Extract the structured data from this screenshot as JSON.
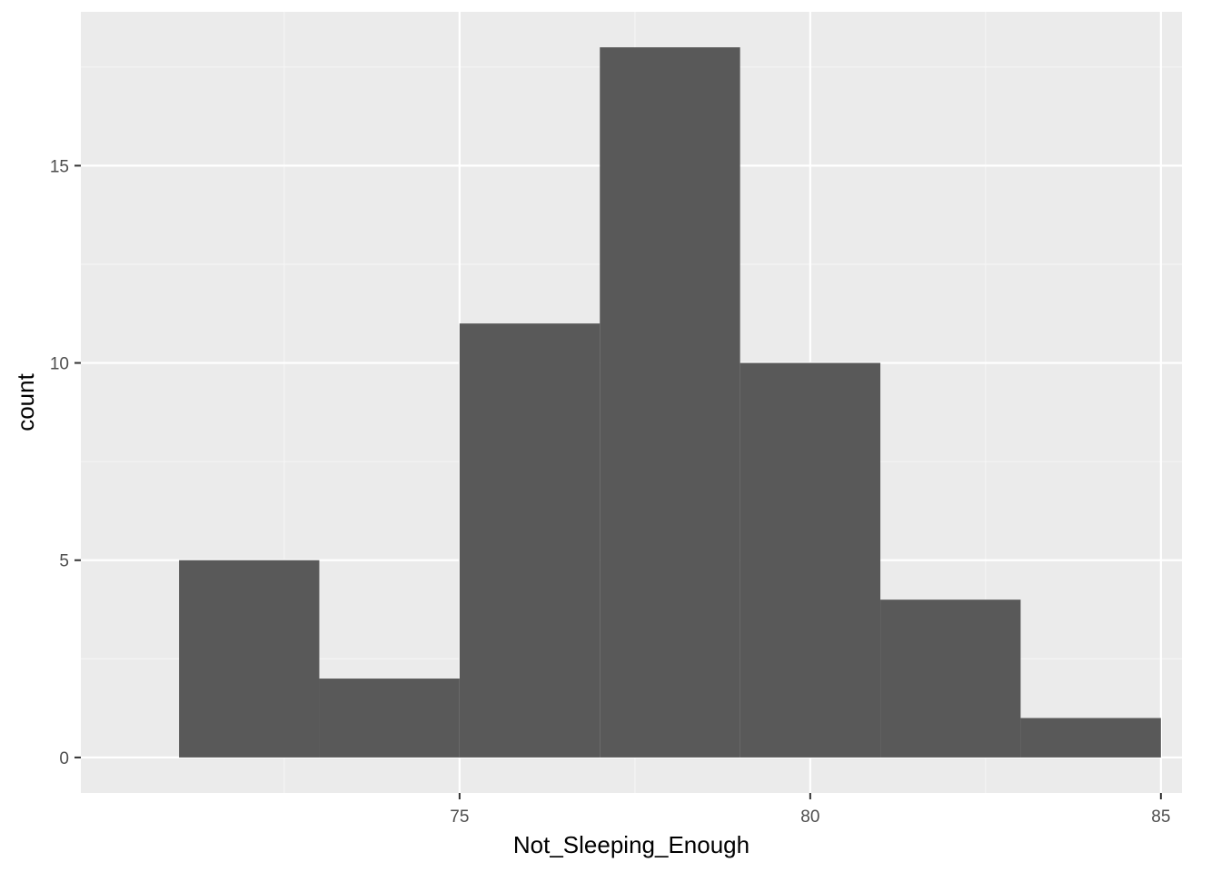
{
  "chart_data": {
    "type": "bar",
    "subtype": "histogram",
    "title": "",
    "xlabel": "Not_Sleeping_Enough",
    "ylabel": "count",
    "bins": [
      {
        "start": 71,
        "end": 73,
        "count": 5
      },
      {
        "start": 73,
        "end": 75,
        "count": 2
      },
      {
        "start": 75,
        "end": 77,
        "count": 11
      },
      {
        "start": 77,
        "end": 79,
        "count": 18
      },
      {
        "start": 79,
        "end": 81,
        "count": 10
      },
      {
        "start": 81,
        "end": 83,
        "count": 4
      },
      {
        "start": 83,
        "end": 85,
        "count": 1
      }
    ],
    "xlim": [
      69.6,
      85.3
    ],
    "ylim": [
      -0.9,
      18.9
    ],
    "xticks": [
      {
        "value": 75,
        "label": "75"
      },
      {
        "value": 80,
        "label": "80"
      },
      {
        "value": 85,
        "label": "85"
      }
    ],
    "xminor": [
      72.5,
      77.5,
      82.5
    ],
    "yticks": [
      {
        "value": 0,
        "label": "0"
      },
      {
        "value": 5,
        "label": "5"
      },
      {
        "value": 10,
        "label": "10"
      },
      {
        "value": 15,
        "label": "15"
      }
    ],
    "yminor": [
      2.5,
      7.5,
      12.5,
      17.5
    ],
    "grid": true,
    "colors": {
      "panel_background": "#EBEBEB",
      "grid_major": "#FFFFFF",
      "grid_minor": "#F5F5F5",
      "bar_fill": "#595959",
      "tick_mark": "#333333",
      "tick_label": "#4D4D4D"
    }
  }
}
